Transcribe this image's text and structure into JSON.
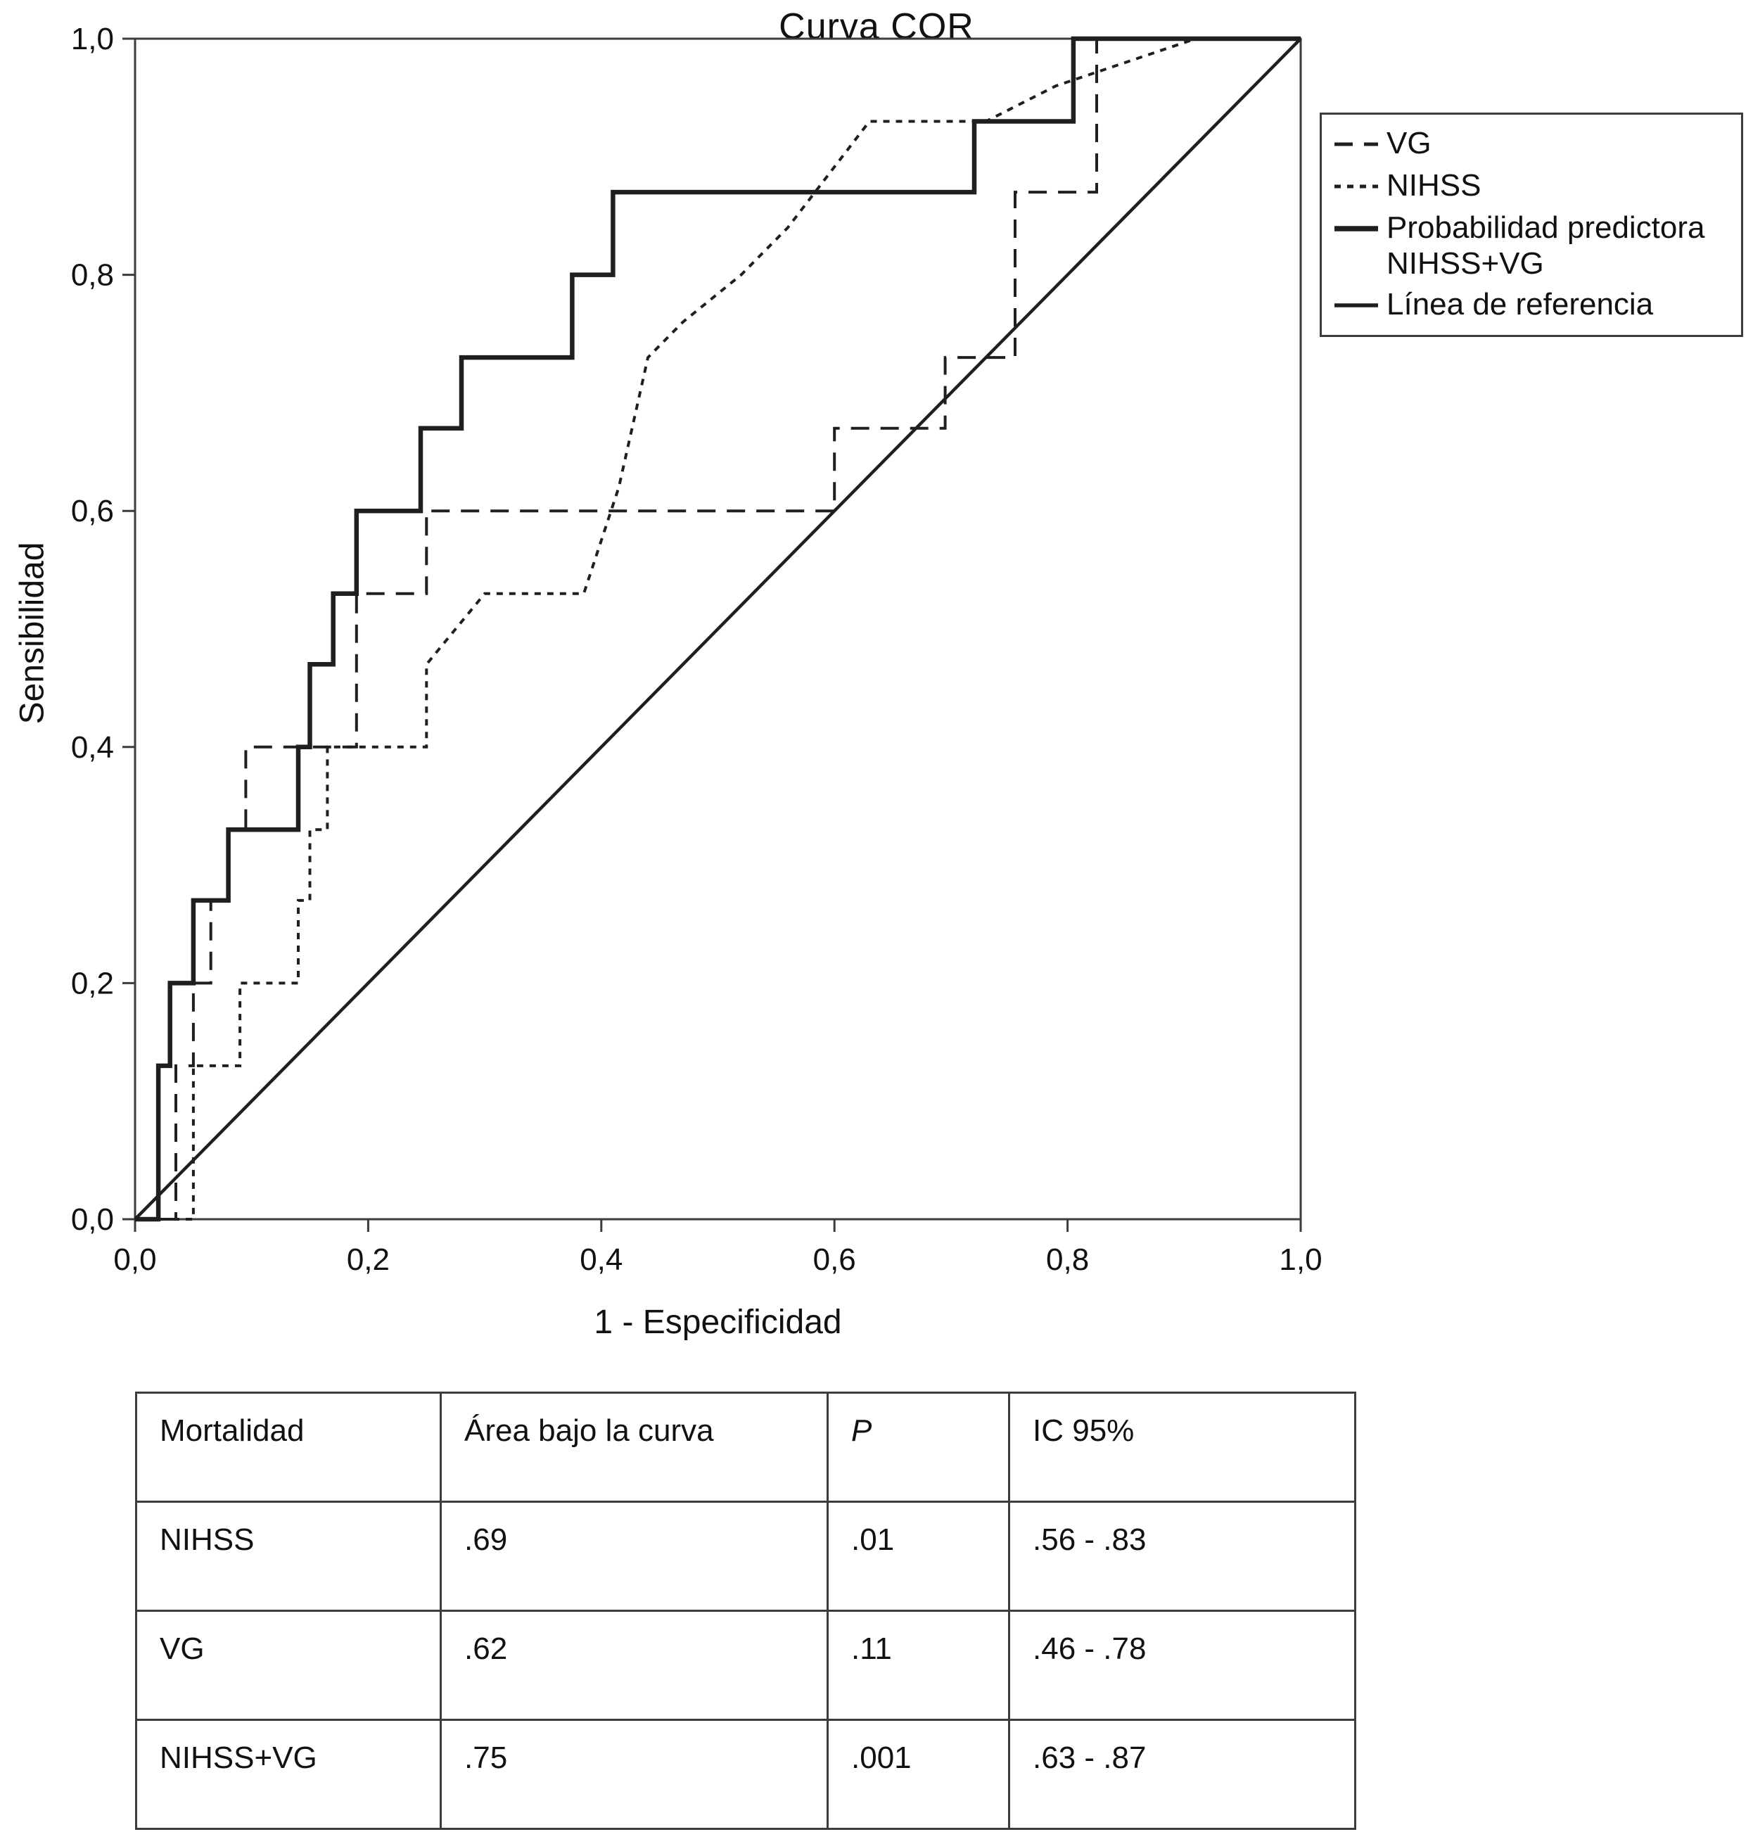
{
  "chart_data": {
    "type": "line",
    "subtype": "roc-step-curves",
    "title": "Curva COR",
    "xlabel": "1 - Especificidad",
    "ylabel": "Sensibilidad",
    "xlim": [
      0,
      1
    ],
    "ylim": [
      0,
      1
    ],
    "grid": false,
    "legend_position": "upper-right-outside",
    "x_tick_labels": [
      "0,0",
      "0,2",
      "0,4",
      "0,6",
      "0,8",
      "1,0"
    ],
    "y_tick_labels": [
      "0,0",
      "0,2",
      "0,4",
      "0,6",
      "0,8",
      "1,0"
    ],
    "series": [
      {
        "name": "VG",
        "style": "dashed-long",
        "points": [
          [
            0,
            0
          ],
          [
            0.035,
            0
          ],
          [
            0.035,
            0.13
          ],
          [
            0.05,
            0.13
          ],
          [
            0.05,
            0.2
          ],
          [
            0.065,
            0.2
          ],
          [
            0.065,
            0.27
          ],
          [
            0.08,
            0.27
          ],
          [
            0.08,
            0.33
          ],
          [
            0.095,
            0.33
          ],
          [
            0.095,
            0.4
          ],
          [
            0.19,
            0.4
          ],
          [
            0.19,
            0.53
          ],
          [
            0.25,
            0.53
          ],
          [
            0.25,
            0.6
          ],
          [
            0.6,
            0.6
          ],
          [
            0.6,
            0.67
          ],
          [
            0.695,
            0.67
          ],
          [
            0.695,
            0.73
          ],
          [
            0.755,
            0.73
          ],
          [
            0.755,
            0.87
          ],
          [
            0.825,
            0.87
          ],
          [
            0.825,
            1.0
          ],
          [
            1,
            1
          ]
        ]
      },
      {
        "name": "NIHSS",
        "style": "dashed-short",
        "points": [
          [
            0,
            0
          ],
          [
            0.05,
            0
          ],
          [
            0.05,
            0.13
          ],
          [
            0.09,
            0.13
          ],
          [
            0.09,
            0.2
          ],
          [
            0.14,
            0.2
          ],
          [
            0.14,
            0.27
          ],
          [
            0.15,
            0.27
          ],
          [
            0.15,
            0.33
          ],
          [
            0.165,
            0.33
          ],
          [
            0.165,
            0.4
          ],
          [
            0.25,
            0.4
          ],
          [
            0.25,
            0.47
          ],
          [
            0.275,
            0.5
          ],
          [
            0.3,
            0.53
          ],
          [
            0.385,
            0.53
          ],
          [
            0.415,
            0.62
          ],
          [
            0.44,
            0.73
          ],
          [
            0.47,
            0.76
          ],
          [
            0.52,
            0.8
          ],
          [
            0.56,
            0.84
          ],
          [
            0.63,
            0.93
          ],
          [
            0.73,
            0.93
          ],
          [
            0.79,
            0.96
          ],
          [
            0.91,
            1.0
          ],
          [
            1,
            1
          ]
        ]
      },
      {
        "name": "Probabilidad predictora NIHSS+VG",
        "style": "solid-thick",
        "points": [
          [
            0,
            0
          ],
          [
            0.02,
            0
          ],
          [
            0.02,
            0.13
          ],
          [
            0.03,
            0.13
          ],
          [
            0.03,
            0.2
          ],
          [
            0.05,
            0.2
          ],
          [
            0.05,
            0.27
          ],
          [
            0.08,
            0.27
          ],
          [
            0.08,
            0.33
          ],
          [
            0.14,
            0.33
          ],
          [
            0.14,
            0.4
          ],
          [
            0.15,
            0.4
          ],
          [
            0.15,
            0.47
          ],
          [
            0.17,
            0.47
          ],
          [
            0.17,
            0.53
          ],
          [
            0.19,
            0.53
          ],
          [
            0.19,
            0.6
          ],
          [
            0.245,
            0.6
          ],
          [
            0.245,
            0.67
          ],
          [
            0.28,
            0.67
          ],
          [
            0.28,
            0.73
          ],
          [
            0.375,
            0.73
          ],
          [
            0.375,
            0.8
          ],
          [
            0.41,
            0.8
          ],
          [
            0.41,
            0.87
          ],
          [
            0.72,
            0.87
          ],
          [
            0.72,
            0.93
          ],
          [
            0.805,
            0.93
          ],
          [
            0.805,
            1.0
          ],
          [
            1,
            1
          ]
        ]
      },
      {
        "name": "Línea de referencia",
        "style": "solid",
        "points": [
          [
            0,
            0
          ],
          [
            1,
            1
          ]
        ]
      }
    ],
    "colors": {
      "line": "#1f1f1f",
      "frame": "#3c3c3c",
      "text": "#111111"
    }
  },
  "legend": {
    "items": [
      {
        "label": "VG",
        "style": "dashed-long"
      },
      {
        "label": "NIHSS",
        "style": "dashed-short"
      },
      {
        "label": "Probabilidad predictora NIHSS+VG",
        "style": "solid-thick"
      },
      {
        "label": "Línea de referencia",
        "style": "solid"
      }
    ]
  },
  "table": {
    "headers": [
      "Mortalidad",
      "Área bajo la curva",
      "P",
      "IC 95%"
    ],
    "rows": [
      [
        "NIHSS",
        ".69",
        ".01",
        ".56 - .83"
      ],
      [
        "VG",
        ".62",
        ".11",
        ".46 - .78"
      ],
      [
        "NIHSS+VG",
        ".75",
        ".001",
        ".63 - .87"
      ]
    ]
  }
}
